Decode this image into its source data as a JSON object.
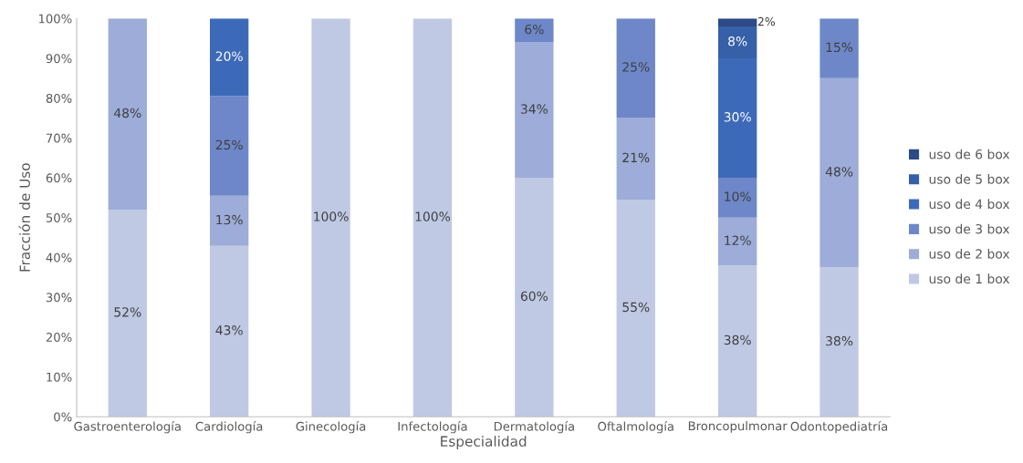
{
  "chart_data": {
    "type": "bar",
    "stacked": true,
    "xlabel": "Especialidad",
    "ylabel": "Fracción de Uso",
    "categories": [
      "Gastroenterología",
      "Cardiología",
      "Ginecología",
      "Infectología",
      "Dermatología",
      "Oftalmología",
      "Broncopulmonar",
      "Odontopediatría"
    ],
    "series": [
      {
        "name": "uso de 1 box",
        "color": "#bfc9e4",
        "values": [
          52,
          42.9,
          100,
          100,
          60,
          54.5,
          38,
          37.5
        ],
        "value_labels": [
          "52%",
          "43%",
          "100%",
          "100%",
          "60%",
          "55%",
          "38%",
          "38%"
        ]
      },
      {
        "name": "uso de 2 box",
        "color": "#9dacd8",
        "values": [
          48,
          12.6,
          null,
          null,
          34,
          20.6,
          12,
          47.5
        ],
        "value_labels": [
          "48%",
          "13%",
          null,
          null,
          "34%",
          "21%",
          "12%",
          "48%"
        ]
      },
      {
        "name": "uso de 3 box",
        "color": "#6d87c9",
        "values": [
          null,
          25,
          null,
          null,
          6,
          24.9,
          10,
          15
        ],
        "value_labels": [
          null,
          "25%",
          null,
          null,
          "6%",
          "25%",
          "10%",
          "15%"
        ]
      },
      {
        "name": "uso de 4 box",
        "color": "#3d6ab8",
        "values": [
          null,
          19.5,
          null,
          null,
          null,
          null,
          30,
          null
        ],
        "value_labels": [
          null,
          "20%",
          null,
          null,
          null,
          null,
          "30%",
          null
        ]
      },
      {
        "name": "uso de 5 box",
        "color": "#3660a8",
        "values": [
          null,
          null,
          null,
          null,
          null,
          null,
          8,
          null
        ],
        "value_labels": [
          null,
          null,
          null,
          null,
          null,
          null,
          "8%",
          null
        ]
      },
      {
        "name": "uso de 6 box",
        "color": "#2b4a86",
        "values": [
          null,
          null,
          null,
          null,
          null,
          null,
          2,
          null
        ],
        "value_labels": [
          null,
          null,
          null,
          null,
          null,
          null,
          "2%",
          null
        ]
      }
    ],
    "ylim": [
      0,
      100
    ],
    "yticks": [
      {
        "value": 0,
        "label": "0%"
      },
      {
        "value": 10,
        "label": "10%"
      },
      {
        "value": 20,
        "label": "20%"
      },
      {
        "value": 30,
        "label": "30%"
      },
      {
        "value": 40,
        "label": "40%"
      },
      {
        "value": 50,
        "label": "50%"
      },
      {
        "value": 60,
        "label": "60%"
      },
      {
        "value": 70,
        "label": "70%"
      },
      {
        "value": 80,
        "label": "80%"
      },
      {
        "value": 90,
        "label": "90%"
      },
      {
        "value": 100,
        "label": "100%"
      }
    ],
    "grid": false,
    "legend": "right"
  }
}
